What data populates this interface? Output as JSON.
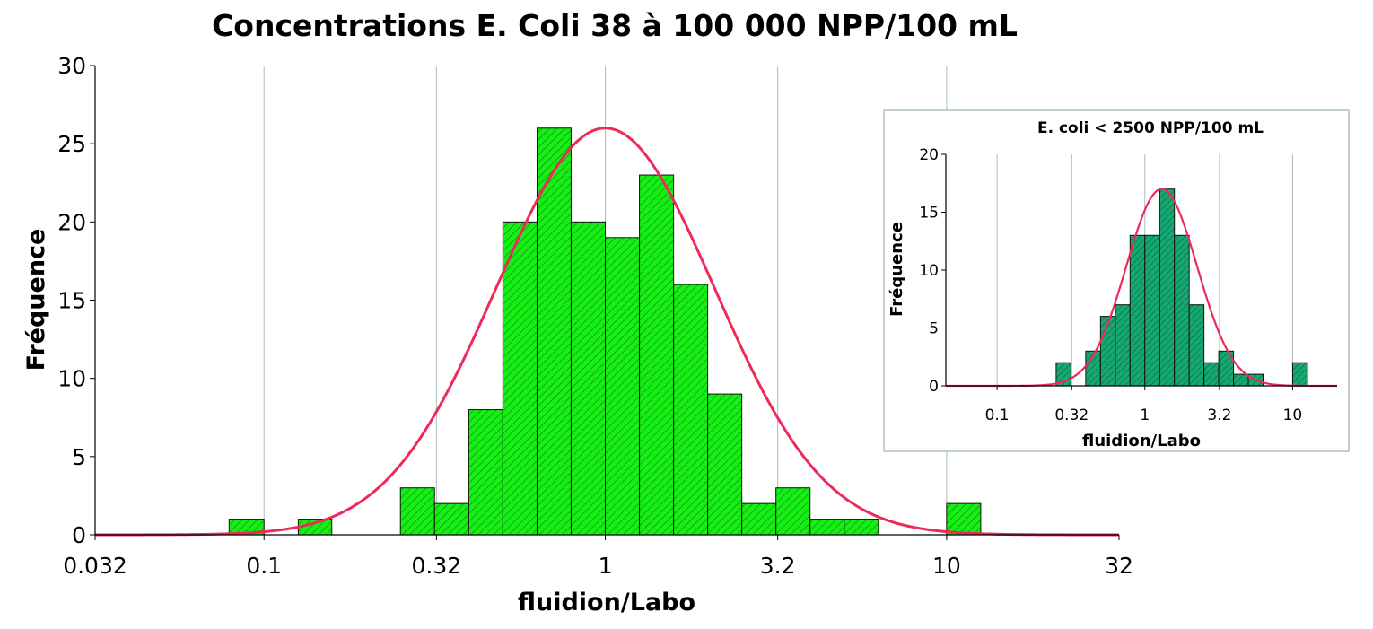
{
  "chart_data": [
    {
      "type": "bar",
      "title": "Concentrations E. Coli 38 à 100 000 NPP/100 mL",
      "xlabel": "fluidion/Labo",
      "ylabel": "Fréquence",
      "x_scale": "log",
      "xlim": [
        0.032,
        32
      ],
      "ylim": [
        0,
        30
      ],
      "x_ticks": [
        "0.032",
        "0.1",
        "0.32",
        "1",
        "3.2",
        "10",
        "32"
      ],
      "y_ticks": [
        "0",
        "5",
        "10",
        "15",
        "20",
        "25",
        "30"
      ],
      "grid": "vertical",
      "bar_color": "#16ee16",
      "curve_color": "#ee2a5a",
      "bins": [
        {
          "x0": 0.079,
          "x1": 0.1,
          "count": 1
        },
        {
          "x0": 0.126,
          "x1": 0.158,
          "count": 1
        },
        {
          "x0": 0.251,
          "x1": 0.316,
          "count": 3
        },
        {
          "x0": 0.316,
          "x1": 0.398,
          "count": 2
        },
        {
          "x0": 0.398,
          "x1": 0.501,
          "count": 8
        },
        {
          "x0": 0.501,
          "x1": 0.631,
          "count": 20
        },
        {
          "x0": 0.631,
          "x1": 0.794,
          "count": 26
        },
        {
          "x0": 0.794,
          "x1": 1.0,
          "count": 20
        },
        {
          "x0": 1.0,
          "x1": 1.259,
          "count": 19
        },
        {
          "x0": 1.259,
          "x1": 1.585,
          "count": 23
        },
        {
          "x0": 1.585,
          "x1": 1.995,
          "count": 16
        },
        {
          "x0": 1.995,
          "x1": 2.512,
          "count": 9
        },
        {
          "x0": 2.512,
          "x1": 3.162,
          "count": 2
        },
        {
          "x0": 3.162,
          "x1": 3.981,
          "count": 3
        },
        {
          "x0": 3.981,
          "x1": 5.012,
          "count": 1
        },
        {
          "x0": 5.012,
          "x1": 6.31,
          "count": 1
        },
        {
          "x0": 10.0,
          "x1": 12.59,
          "count": 2
        }
      ],
      "fit": {
        "type": "lognormal",
        "peak_x": 1.0,
        "peak_y": 26,
        "sigma_log10": 0.32
      }
    },
    {
      "type": "bar",
      "title": "E. coli < 2500 NPP/100 mL",
      "xlabel": "fluidion/Labo",
      "ylabel": "Fréquence",
      "x_scale": "log",
      "xlim": [
        0.045,
        20
      ],
      "ylim": [
        0,
        20
      ],
      "x_ticks": [
        "0.1",
        "0.32",
        "1",
        "3.2",
        "10"
      ],
      "y_ticks": [
        "0",
        "5",
        "10",
        "15",
        "20"
      ],
      "grid": "vertical",
      "bar_color": "#16a873",
      "curve_color": "#ee2a5a",
      "bins": [
        {
          "x0": 0.251,
          "x1": 0.316,
          "count": 2
        },
        {
          "x0": 0.398,
          "x1": 0.501,
          "count": 3
        },
        {
          "x0": 0.501,
          "x1": 0.631,
          "count": 6
        },
        {
          "x0": 0.631,
          "x1": 0.794,
          "count": 7
        },
        {
          "x0": 0.794,
          "x1": 1.0,
          "count": 13
        },
        {
          "x0": 1.0,
          "x1": 1.259,
          "count": 13
        },
        {
          "x0": 1.259,
          "x1": 1.585,
          "count": 17
        },
        {
          "x0": 1.585,
          "x1": 1.995,
          "count": 13
        },
        {
          "x0": 1.995,
          "x1": 2.512,
          "count": 7
        },
        {
          "x0": 2.512,
          "x1": 3.162,
          "count": 2
        },
        {
          "x0": 3.162,
          "x1": 3.981,
          "count": 3
        },
        {
          "x0": 3.981,
          "x1": 5.012,
          "count": 1
        },
        {
          "x0": 5.012,
          "x1": 6.31,
          "count": 1
        },
        {
          "x0": 10.0,
          "x1": 12.59,
          "count": 2
        }
      ],
      "fit": {
        "type": "lognormal",
        "peak_x": 1.3,
        "peak_y": 17,
        "sigma_log10": 0.24
      }
    }
  ]
}
